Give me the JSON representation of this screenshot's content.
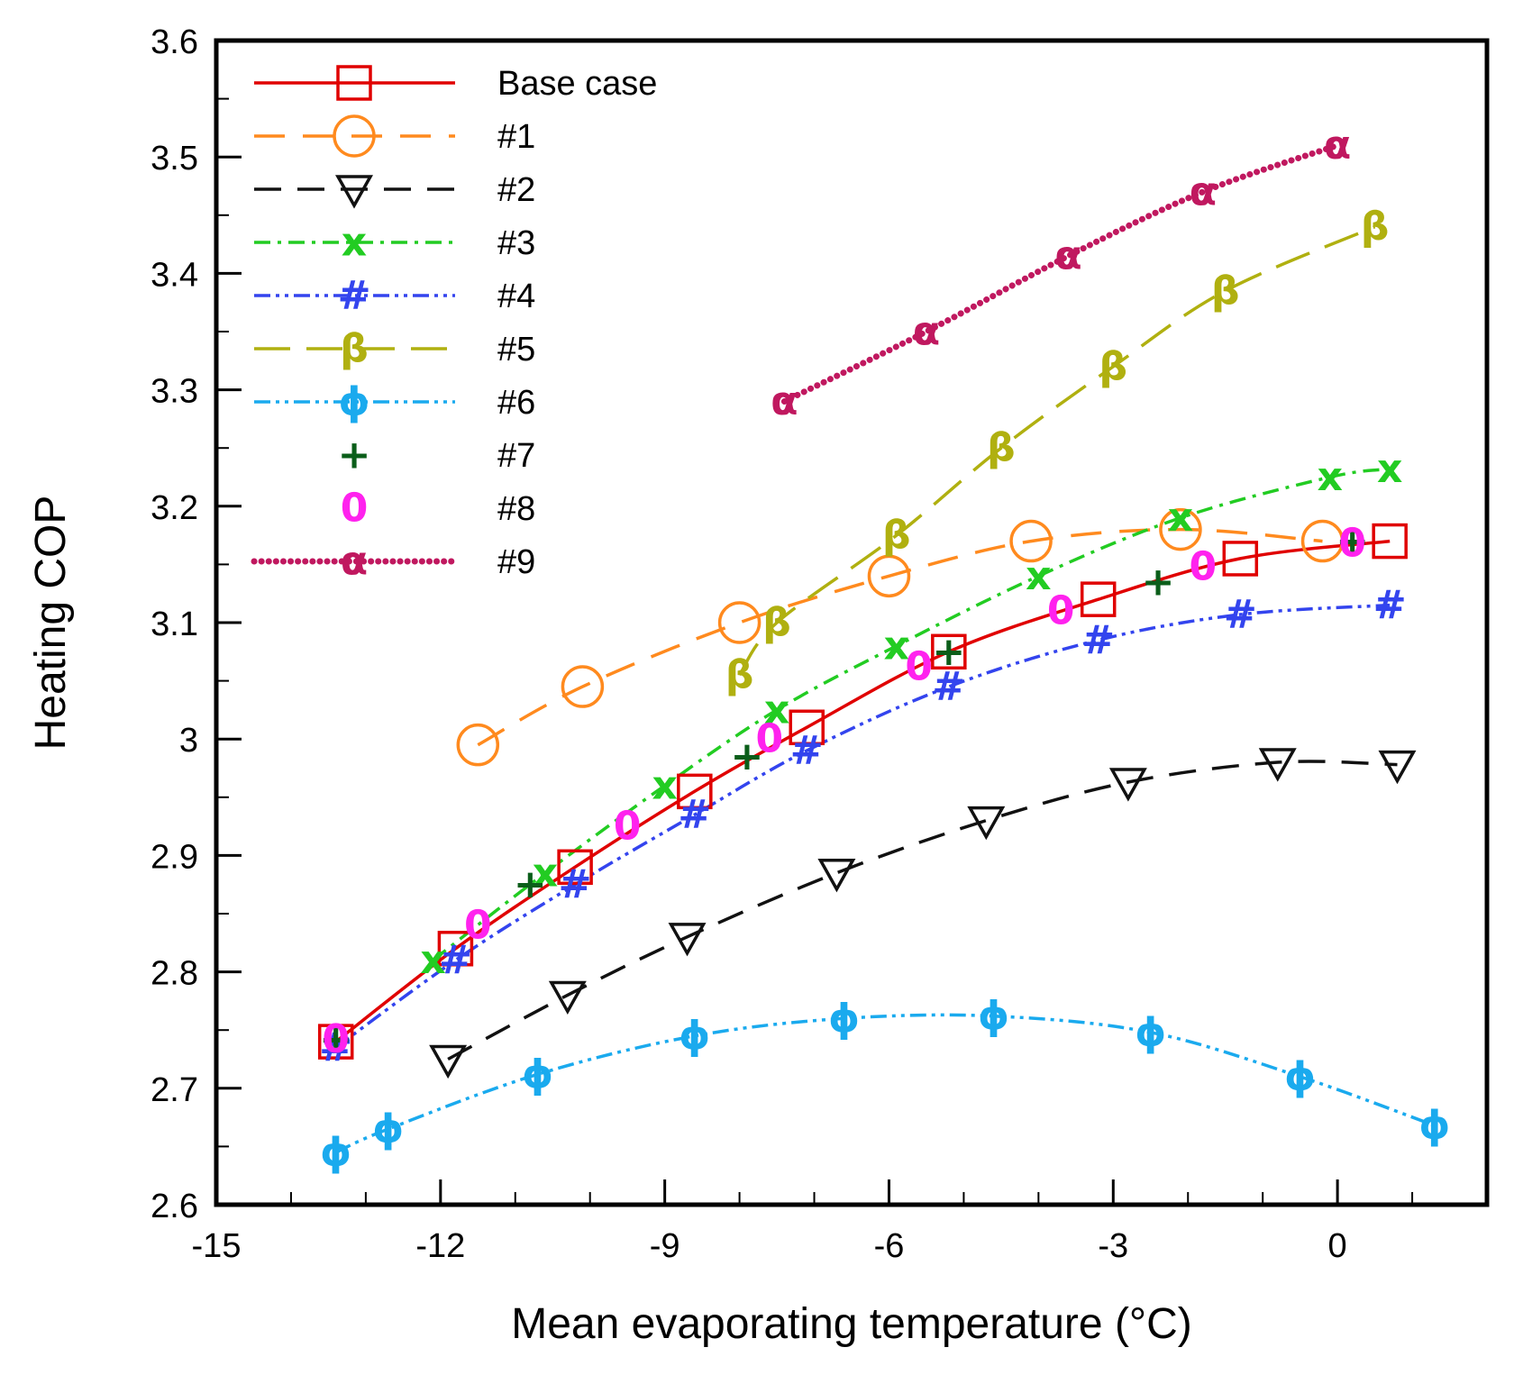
{
  "chart_data": {
    "type": "line",
    "xlabel": "Mean evaporating temperature (°C)",
    "ylabel": "Heating COP",
    "xlim": [
      -15,
      2
    ],
    "ylim": [
      2.6,
      3.6
    ],
    "xticks": [
      "-15",
      "-12",
      "-9",
      "-6",
      "-3",
      "0"
    ],
    "yticks": [
      "2.6",
      "2.7",
      "2.8",
      "2.9",
      "3",
      "3.1",
      "3.2",
      "3.3",
      "3.4",
      "3.5",
      "3.6"
    ],
    "grid": false,
    "legend_position": "top-left",
    "series": [
      {
        "name": "Base case",
        "color": "#e00000",
        "dash": "",
        "marker": "square",
        "marker_symbol": "",
        "x": [
          -13.4,
          -11.8,
          -10.2,
          -8.6,
          -7.1,
          -5.2,
          -3.2,
          -1.3,
          0.7
        ],
        "y": [
          2.74,
          2.82,
          2.89,
          2.955,
          3.01,
          3.075,
          3.12,
          3.155,
          3.17
        ]
      },
      {
        "name": "#1",
        "color": "#ff8a1e",
        "dash": "34,20",
        "marker": "circle",
        "marker_symbol": "",
        "x": [
          -11.5,
          -10.1,
          -8.0,
          -6.0,
          -4.1,
          -2.1,
          -0.2
        ],
        "y": [
          2.995,
          3.045,
          3.1,
          3.14,
          3.17,
          3.18,
          3.17
        ]
      },
      {
        "name": "#2",
        "color": "#111111",
        "dash": "30,18",
        "marker": "triangle-down",
        "marker_symbol": "",
        "x": [
          -11.9,
          -10.3,
          -8.7,
          -6.7,
          -4.7,
          -2.8,
          -0.8,
          0.8
        ],
        "y": [
          2.725,
          2.78,
          2.83,
          2.885,
          2.93,
          2.963,
          2.98,
          2.978
        ]
      },
      {
        "name": "#3",
        "color": "#22cc22",
        "dash": "18,8,4,8",
        "marker": "text",
        "marker_symbol": "x",
        "x": [
          -12.1,
          -10.6,
          -9.0,
          -7.5,
          -5.9,
          -4.0,
          -2.1,
          -0.1,
          0.7
        ],
        "y": [
          2.81,
          2.885,
          2.96,
          3.025,
          3.08,
          3.14,
          3.19,
          3.225,
          3.232
        ]
      },
      {
        "name": "#4",
        "color": "#3344ee",
        "dash": "18,6,4,6,4,6",
        "marker": "text",
        "marker_symbol": "#",
        "x": [
          -13.4,
          -11.8,
          -10.2,
          -8.6,
          -7.1,
          -5.2,
          -3.2,
          -1.3,
          0.7
        ],
        "y": [
          2.735,
          2.81,
          2.875,
          2.935,
          2.99,
          3.045,
          3.085,
          3.107,
          3.115
        ]
      },
      {
        "name": "#5",
        "color": "#b0b010",
        "dash": "40,18",
        "marker": "text",
        "marker_symbol": "β",
        "x": [
          -8.0,
          -7.5,
          -5.9,
          -4.5,
          -3.0,
          -1.5,
          0.5
        ],
        "y": [
          3.055,
          3.1,
          3.175,
          3.25,
          3.32,
          3.385,
          3.44
        ]
      },
      {
        "name": "#6",
        "color": "#1aaaee",
        "dash": "18,6,4,6,4,6",
        "marker": "text",
        "marker_symbol": "ϕ",
        "x": [
          -13.4,
          -12.7,
          -10.7,
          -8.6,
          -6.6,
          -4.6,
          -2.5,
          -0.5,
          1.3
        ],
        "y": [
          2.645,
          2.665,
          2.712,
          2.745,
          2.76,
          2.762,
          2.748,
          2.71,
          2.668
        ]
      },
      {
        "name": "#7",
        "color": "#0b5e1a",
        "dash": "none",
        "marker": "text",
        "marker_symbol": "+",
        "x": [
          -13.4,
          -10.8,
          -7.9,
          -5.2,
          -2.4,
          0.2
        ],
        "y": [
          2.742,
          2.875,
          2.985,
          3.075,
          3.135,
          3.17
        ]
      },
      {
        "name": "#8",
        "color": "#ff22ee",
        "dash": "none",
        "marker": "text",
        "marker_symbol": "0",
        "x": [
          -13.4,
          -11.5,
          -9.5,
          -7.6,
          -5.6,
          -3.7,
          -1.8,
          0.2
        ],
        "y": [
          2.742,
          2.84,
          2.925,
          3.0,
          3.062,
          3.11,
          3.148,
          3.168
        ]
      },
      {
        "name": "#9",
        "color": "#c0185f",
        "dash": "dotted",
        "marker": "text",
        "marker_symbol": "α",
        "x": [
          -7.4,
          -5.5,
          -3.6,
          -1.8,
          0
        ],
        "y": [
          3.29,
          3.35,
          3.415,
          3.47,
          3.51
        ]
      }
    ]
  }
}
